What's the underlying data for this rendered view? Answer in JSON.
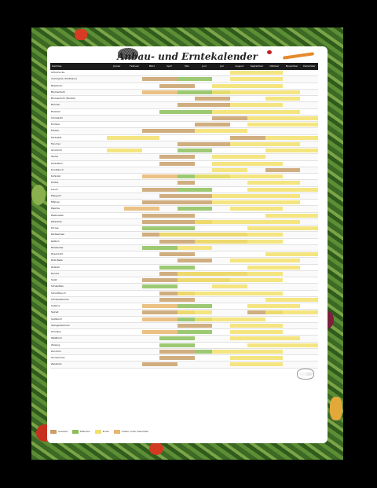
{
  "poster": {
    "title": "Anbau- und Erntekalender",
    "header": {
      "label_col": "Gemüse",
      "months": [
        "Januar",
        "Februar",
        "März",
        "April",
        "Mai",
        "Juni",
        "Juli",
        "August",
        "September",
        "Oktober",
        "November",
        "Dezember"
      ]
    },
    "legend": [
      {
        "label": "Aussaat",
        "color": "#c8a06a"
      },
      {
        "label": "Pflanzen",
        "color": "#8cbf5a"
      },
      {
        "label": "Ernte",
        "color": "#f2e06a"
      },
      {
        "label": "Anbau unter Glas/Vlies",
        "color": "#e8b66e"
      }
    ],
    "rows": [
      {
        "label": "Artischocke",
        "bars": [
          [
            7,
            10,
            "#f2e06a"
          ]
        ]
      },
      {
        "label": "Aubergine (Treibhaus)",
        "bars": [
          [
            2,
            4,
            "#c8a06a"
          ],
          [
            4,
            6,
            "#8cbf5a"
          ],
          [
            7,
            10,
            "#f2e06a"
          ]
        ]
      },
      {
        "label": "Basilikum",
        "bars": [
          [
            3,
            5,
            "#c8a06a"
          ],
          [
            6,
            10,
            "#f2e06a"
          ]
        ]
      },
      {
        "label": "Blumenkohl",
        "bars": [
          [
            2,
            4,
            "#e8b66e"
          ],
          [
            4,
            7,
            "#8cbf5a"
          ],
          [
            6,
            11,
            "#f2e06a"
          ]
        ]
      },
      {
        "label": "Blumenkohl (Herbst)",
        "bars": [
          [
            5,
            7,
            "#c8a06a"
          ],
          [
            9,
            11,
            "#f2e06a"
          ]
        ]
      },
      {
        "label": "Bohnen",
        "bars": [
          [
            4,
            7,
            "#c8a06a"
          ],
          [
            7,
            10,
            "#f2e06a"
          ]
        ]
      },
      {
        "label": "Brokkoli",
        "bars": [
          [
            3,
            6,
            "#8cbf5a"
          ],
          [
            6,
            11,
            "#f2e06a"
          ]
        ]
      },
      {
        "label": "Chinakohl",
        "bars": [
          [
            6,
            8,
            "#c8a06a"
          ],
          [
            8,
            12,
            "#f2e06a"
          ]
        ]
      },
      {
        "label": "Endivie",
        "bars": [
          [
            5,
            7,
            "#c8a06a"
          ],
          [
            8,
            12,
            "#f2e06a"
          ]
        ]
      },
      {
        "label": "Erbsen",
        "bars": [
          [
            2,
            5,
            "#c8a06a"
          ],
          [
            5,
            8,
            "#f2e06a"
          ]
        ]
      },
      {
        "label": "Feldsalat",
        "bars": [
          [
            7,
            9,
            "#c8a06a"
          ],
          [
            0,
            3,
            "#f2e06a"
          ],
          [
            9,
            12,
            "#f2e06a"
          ]
        ]
      },
      {
        "label": "Fenchel",
        "bars": [
          [
            4,
            7,
            "#c8a06a"
          ],
          [
            7,
            11,
            "#f2e06a"
          ]
        ]
      },
      {
        "label": "Grünkohl",
        "bars": [
          [
            4,
            6,
            "#8cbf5a"
          ],
          [
            9,
            12,
            "#f2e06a"
          ],
          [
            0,
            2,
            "#f2e06a"
          ]
        ]
      },
      {
        "label": "Gurke",
        "bars": [
          [
            3,
            5,
            "#c8a06a"
          ],
          [
            6,
            9,
            "#f2e06a"
          ]
        ]
      },
      {
        "label": "Kartoffeln",
        "bars": [
          [
            3,
            5,
            "#c8a06a"
          ],
          [
            6,
            10,
            "#f2e06a"
          ]
        ]
      },
      {
        "label": "Knoblauch",
        "bars": [
          [
            9,
            11,
            "#c8a06a"
          ],
          [
            6,
            8,
            "#f2e06a"
          ]
        ]
      },
      {
        "label": "Kohlrabi",
        "bars": [
          [
            2,
            4,
            "#e8b66e"
          ],
          [
            4,
            7,
            "#8cbf5a"
          ],
          [
            5,
            10,
            "#f2e06a"
          ]
        ]
      },
      {
        "label": "Kürbis",
        "bars": [
          [
            4,
            5,
            "#c8a06a"
          ],
          [
            8,
            11,
            "#f2e06a"
          ]
        ]
      },
      {
        "label": "Lauch",
        "bars": [
          [
            2,
            4,
            "#c8a06a"
          ],
          [
            4,
            6,
            "#8cbf5a"
          ],
          [
            8,
            12,
            "#f2e06a"
          ]
        ]
      },
      {
        "label": "Mangold",
        "bars": [
          [
            3,
            6,
            "#c8a06a"
          ],
          [
            6,
            11,
            "#f2e06a"
          ]
        ]
      },
      {
        "label": "Möhren",
        "bars": [
          [
            2,
            6,
            "#c8a06a"
          ],
          [
            6,
            11,
            "#f2e06a"
          ]
        ]
      },
      {
        "label": "Paprika",
        "bars": [
          [
            1,
            3,
            "#e8b66e"
          ],
          [
            4,
            6,
            "#8cbf5a"
          ],
          [
            7,
            10,
            "#f2e06a"
          ]
        ]
      },
      {
        "label": "Pastinaken",
        "bars": [
          [
            2,
            5,
            "#c8a06a"
          ],
          [
            9,
            12,
            "#f2e06a"
          ]
        ]
      },
      {
        "label": "Petersilie",
        "bars": [
          [
            2,
            6,
            "#c8a06a"
          ],
          [
            5,
            11,
            "#f2e06a"
          ]
        ]
      },
      {
        "label": "Porree",
        "bars": [
          [
            2,
            5,
            "#8cbf5a"
          ],
          [
            8,
            12,
            "#f2e06a"
          ]
        ]
      },
      {
        "label": "Radieschen",
        "bars": [
          [
            2,
            8,
            "#c8a06a"
          ],
          [
            3,
            10,
            "#f2e06a"
          ]
        ]
      },
      {
        "label": "Rettich",
        "bars": [
          [
            3,
            8,
            "#c8a06a"
          ],
          [
            5,
            10,
            "#f2e06a"
          ]
        ]
      },
      {
        "label": "Rhabarber",
        "bars": [
          [
            2,
            4,
            "#8cbf5a"
          ],
          [
            4,
            6,
            "#f2e06a"
          ]
        ]
      },
      {
        "label": "Rosenkohl",
        "bars": [
          [
            3,
            5,
            "#c8a06a"
          ],
          [
            9,
            12,
            "#f2e06a"
          ]
        ]
      },
      {
        "label": "Rote Bete",
        "bars": [
          [
            4,
            6,
            "#c8a06a"
          ],
          [
            7,
            11,
            "#f2e06a"
          ]
        ]
      },
      {
        "label": "Rotkohl",
        "bars": [
          [
            3,
            5,
            "#8cbf5a"
          ],
          [
            8,
            11,
            "#f2e06a"
          ]
        ]
      },
      {
        "label": "Rucola",
        "bars": [
          [
            3,
            8,
            "#c8a06a"
          ],
          [
            4,
            10,
            "#f2e06a"
          ]
        ]
      },
      {
        "label": "Salat",
        "bars": [
          [
            2,
            7,
            "#c8a06a"
          ],
          [
            4,
            10,
            "#f2e06a"
          ]
        ]
      },
      {
        "label": "Schalotten",
        "bars": [
          [
            2,
            4,
            "#8cbf5a"
          ],
          [
            6,
            8,
            "#f2e06a"
          ]
        ]
      },
      {
        "label": "Schnittlauch",
        "bars": [
          [
            3,
            5,
            "#c8a06a"
          ],
          [
            4,
            10,
            "#f2e06a"
          ]
        ]
      },
      {
        "label": "Schwarzwurzel",
        "bars": [
          [
            3,
            5,
            "#c8a06a"
          ],
          [
            9,
            12,
            "#f2e06a"
          ]
        ]
      },
      {
        "label": "Sellerie",
        "bars": [
          [
            2,
            4,
            "#e8b66e"
          ],
          [
            4,
            6,
            "#8cbf5a"
          ],
          [
            8,
            11,
            "#f2e06a"
          ]
        ]
      },
      {
        "label": "Spinat",
        "bars": [
          [
            2,
            5,
            "#c8a06a"
          ],
          [
            8,
            10,
            "#c8a06a"
          ],
          [
            4,
            6,
            "#f2e06a"
          ],
          [
            9,
            12,
            "#f2e06a"
          ]
        ]
      },
      {
        "label": "Spitzkohl",
        "bars": [
          [
            2,
            4,
            "#e8b66e"
          ],
          [
            4,
            6,
            "#8cbf5a"
          ],
          [
            5,
            9,
            "#f2e06a"
          ]
        ]
      },
      {
        "label": "Stangenbohnen",
        "bars": [
          [
            4,
            6,
            "#c8a06a"
          ],
          [
            7,
            10,
            "#f2e06a"
          ]
        ]
      },
      {
        "label": "Tomaten",
        "bars": [
          [
            2,
            4,
            "#e8b66e"
          ],
          [
            4,
            6,
            "#8cbf5a"
          ],
          [
            7,
            10,
            "#f2e06a"
          ]
        ]
      },
      {
        "label": "Weißkohl",
        "bars": [
          [
            3,
            5,
            "#8cbf5a"
          ],
          [
            7,
            11,
            "#f2e06a"
          ]
        ]
      },
      {
        "label": "Wirsing",
        "bars": [
          [
            3,
            5,
            "#8cbf5a"
          ],
          [
            8,
            12,
            "#f2e06a"
          ]
        ]
      },
      {
        "label": "Zucchini",
        "bars": [
          [
            3,
            5,
            "#c8a06a"
          ],
          [
            5,
            6,
            "#8cbf5a"
          ],
          [
            6,
            10,
            "#f2e06a"
          ]
        ]
      },
      {
        "label": "Zuckermais",
        "bars": [
          [
            3,
            5,
            "#c8a06a"
          ],
          [
            7,
            10,
            "#f2e06a"
          ]
        ]
      },
      {
        "label": "Zwiebeln",
        "bars": [
          [
            2,
            4,
            "#c8a06a"
          ],
          [
            7,
            10,
            "#f2e06a"
          ]
        ]
      }
    ]
  }
}
